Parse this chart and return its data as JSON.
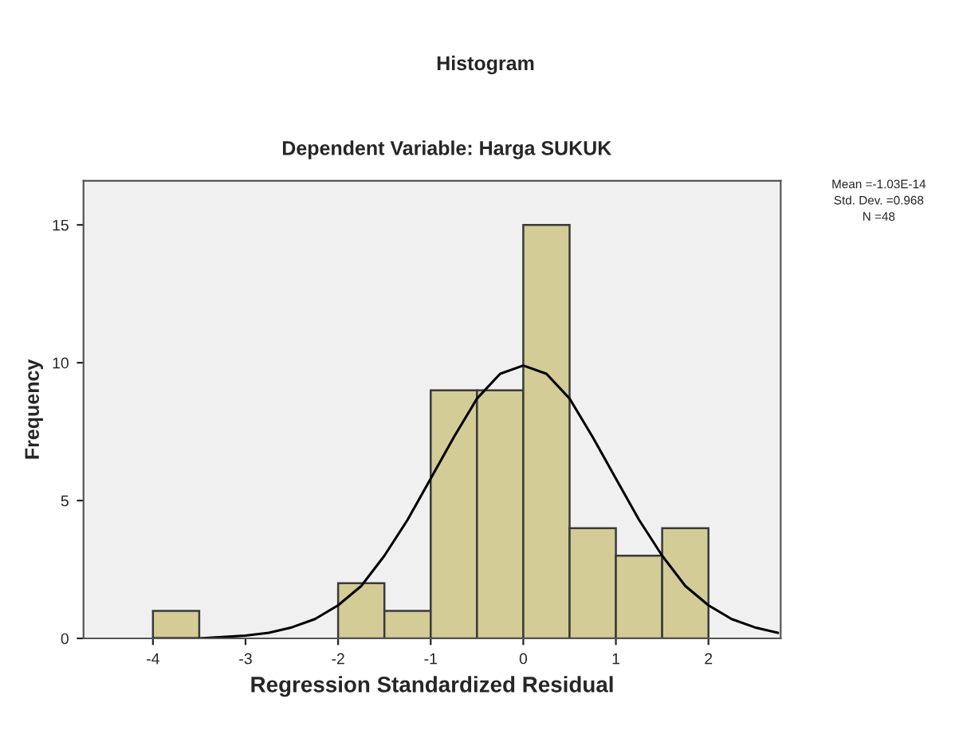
{
  "chart_data": {
    "type": "histogram",
    "title": "Histogram",
    "subtitle": "Dependent Variable: Harga SUKUK",
    "xlabel": "Regression Standardized Residual",
    "ylabel": "Frequency",
    "bins": [
      -4,
      -3.5,
      -3,
      -2.5,
      -2,
      -1.5,
      -1,
      -0.5,
      0,
      0.5,
      1,
      1.5,
      2
    ],
    "values": [
      1,
      0,
      0,
      0,
      2,
      1,
      9,
      9,
      15,
      4,
      3,
      4
    ],
    "color": "#d3cc97",
    "series": [
      {
        "type": "line",
        "color": "#000000",
        "x": [
          -4,
          -3.5,
          -3,
          -2.75,
          -2.5,
          -2.25,
          -2,
          -1.75,
          -1.5,
          -1.25,
          -1,
          -0.75,
          -0.5,
          -0.25,
          0,
          0.25,
          0.5,
          0.75,
          1,
          1.25,
          1.5,
          1.75,
          2,
          2.25,
          2.5,
          2.75
        ],
        "values": [
          0,
          0,
          0.1,
          0.2,
          0.4,
          0.7,
          1.2,
          1.9,
          3.0,
          4.3,
          5.8,
          7.3,
          8.7,
          9.6,
          9.9,
          9.6,
          8.7,
          7.3,
          5.8,
          4.3,
          3.0,
          1.9,
          1.2,
          0.7,
          0.4,
          0.2
        ]
      }
    ],
    "xlim": [
      -4.75,
      2.78
    ],
    "ylim": [
      0,
      16.6
    ],
    "xticks": [
      -4,
      -3,
      -2,
      -1,
      0,
      1,
      2
    ],
    "yticks": [
      0,
      5,
      10,
      15
    ],
    "grid": false,
    "annotations": [
      "Mean =-1.03E-14",
      "Std. Dev. =0.968",
      "N =48"
    ]
  }
}
